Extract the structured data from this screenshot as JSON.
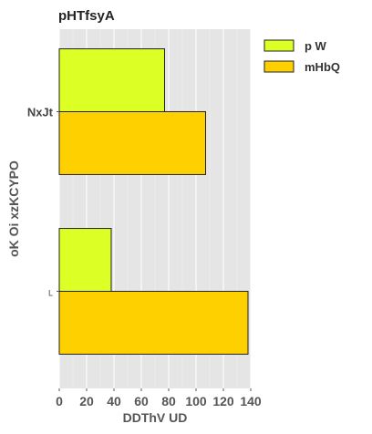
{
  "chart_data": {
    "type": "bar",
    "orientation": "horizontal",
    "title": "pHTfsyA",
    "xlabel": "DDThV   UD",
    "ylabel": "oK Oi xzKCYPO",
    "categories": [
      "NxJt",
      "L"
    ],
    "series": [
      {
        "name": "p W",
        "values": [
          77,
          38
        ],
        "color": "#dcff26"
      },
      {
        "name": "mHbQ",
        "values": [
          107,
          138
        ],
        "color": "#ffd000"
      }
    ],
    "xlim": [
      0,
      140
    ],
    "xticks": [
      0,
      20,
      40,
      60,
      80,
      100,
      120,
      140
    ],
    "grid": true,
    "legend_position": "top-right",
    "background_color": "#e5e5e5"
  }
}
